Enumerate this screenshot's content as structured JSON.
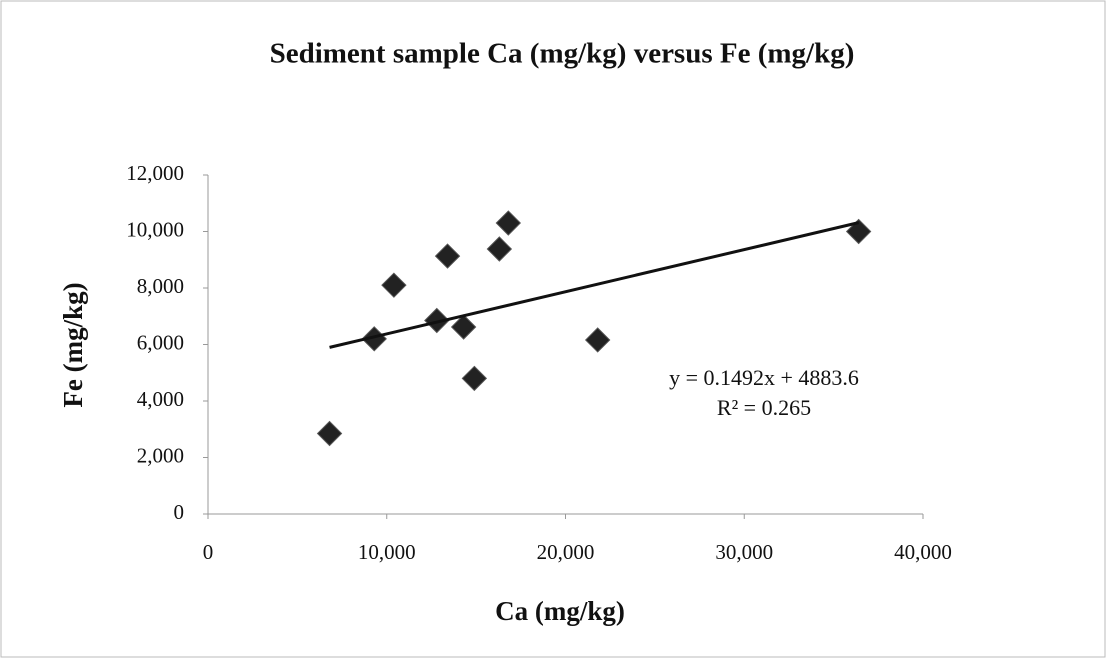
{
  "chart_data": {
    "type": "scatter",
    "title": "Sediment sample Ca (mg/kg) versus Fe (mg/kg)",
    "x_label": "Ca (mg/kg)",
    "y_label": "Fe (mg/kg)",
    "series": [
      {
        "color": "#222222",
        "x": [
          6800,
          9300,
          10400,
          12800,
          13400,
          14300,
          14900,
          16300,
          16800,
          21800,
          36400
        ],
        "values": [
          2850,
          6200,
          8100,
          6850,
          9130,
          6620,
          4800,
          9380,
          10300,
          6160,
          10000
        ]
      }
    ],
    "trendline": {
      "slope": 0.1492,
      "intercept": 4883.6,
      "color": "#111111",
      "equation": "y = 0.1492x  + 4883.6",
      "r2_label": "R² = 0.265"
    },
    "xlim": [
      0,
      40000
    ],
    "xticks": [
      0,
      {
        "value": 10000,
        "label": "10,000"
      },
      {
        "value": 20000,
        "label": "20,000"
      },
      {
        "value": 30000,
        "label": "30,000"
      },
      {
        "value": 40000,
        "label": "40,000"
      }
    ],
    "ylim": [
      0,
      12000
    ],
    "yticks": [
      0,
      {
        "value": 2000,
        "label": "2,000"
      },
      {
        "value": 4000,
        "label": "4,000"
      },
      {
        "value": 6000,
        "label": "6,000"
      },
      {
        "value": 8000,
        "label": "8,000"
      },
      {
        "value": 10000,
        "label": "10,000"
      },
      {
        "value": 12000,
        "label": "12,000"
      }
    ],
    "grid": false
  }
}
